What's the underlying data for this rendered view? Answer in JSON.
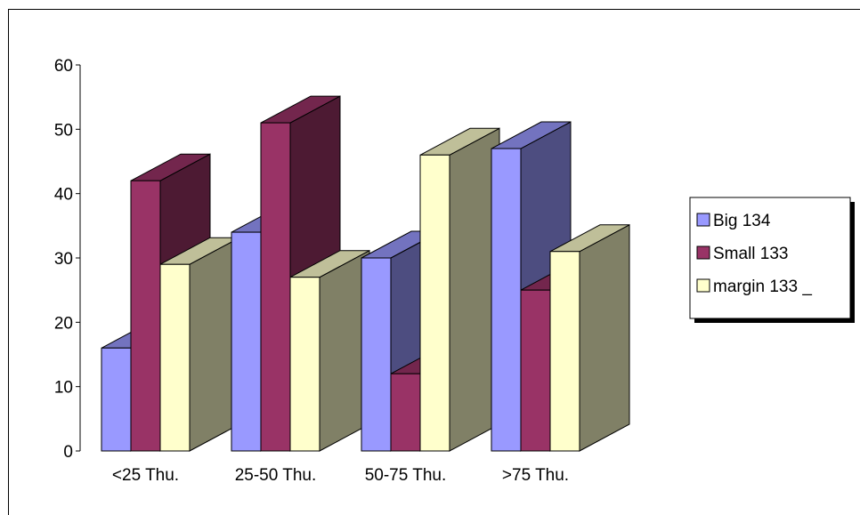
{
  "chart_data": {
    "type": "bar",
    "style": "3d-clustered-column",
    "categories": [
      "<25 Thu.",
      "25-50 Thu.",
      "50-75 Thu.",
      ">75 Thu."
    ],
    "series": [
      {
        "name": "Big 134",
        "values": [
          16,
          34,
          30,
          47
        ],
        "color": "#9999FF"
      },
      {
        "name": "Small 133",
        "values": [
          42,
          51,
          12,
          25
        ],
        "color": "#993366"
      },
      {
        "name": "margin 133 _",
        "values": [
          29,
          27,
          46,
          31
        ],
        "color": "#FFFFCC"
      }
    ],
    "ylim": [
      0,
      60
    ],
    "yticks": [
      0,
      10,
      20,
      30,
      40,
      50,
      60
    ],
    "grid": false,
    "legend": "right",
    "title": "",
    "xlabel": "",
    "ylabel": ""
  }
}
